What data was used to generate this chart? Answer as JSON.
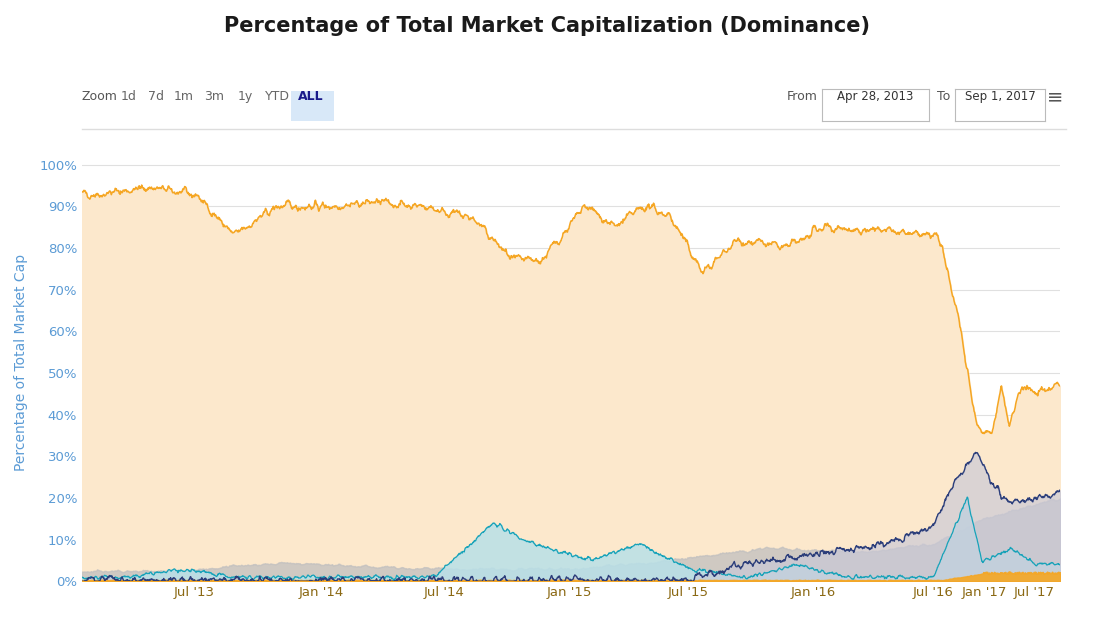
{
  "title": "Percentage of Total Market Capitalization (Dominance)",
  "ylabel": "Percentage of Total Market Cap",
  "background_color": "#ffffff",
  "plot_bg_color": "#ffffff",
  "title_fontsize": 15,
  "ylabel_color": "#5b9bd5",
  "tick_color": "#5b9bd5",
  "xtick_color": "#8B6914",
  "grid_color": "#e0e0e0",
  "btc_line_color": "#f5a623",
  "btc_fill_color": "#fce8cc",
  "eth_line_color": "#2c3e7a",
  "eth_fill_color": "#c8c8d8",
  "xrp_line_color": "#17a2b8",
  "xrp_fill_color": "#b8e0e8",
  "gray_fill_color": "#c0bfbf",
  "orange_line_color": "#e07010",
  "zoom_labels": [
    "1d",
    "7d",
    "1m",
    "3m",
    "1y",
    "YTD",
    "ALL"
  ],
  "from_date": "Apr 28, 2013",
  "to_date": "Sep 1, 2017",
  "yticks": [
    0,
    10,
    20,
    30,
    40,
    50,
    60,
    70,
    80,
    90,
    100
  ],
  "xtick_labels": [
    "Jul '13",
    "Jan '14",
    "Jul '14",
    "Jan '15",
    "Jul '15",
    "Jan '16",
    "Jul '16",
    "Jan '17",
    "Jul '17"
  ],
  "xtick_positions": [
    0.115,
    0.245,
    0.37,
    0.498,
    0.62,
    0.748,
    0.87,
    0.922,
    0.973
  ]
}
